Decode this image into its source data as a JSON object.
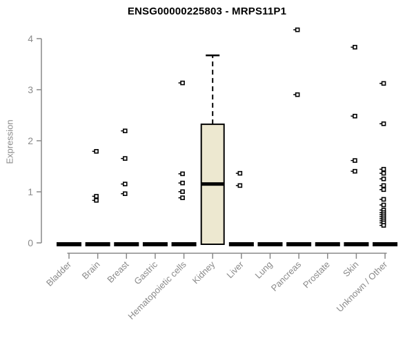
{
  "chart_data": {
    "type": "boxplot",
    "title": "ENSG00000225803 - MRPS11P1",
    "ylabel": "Expression",
    "xlabel": "",
    "ylim": [
      0,
      4
    ],
    "yticks": [
      0,
      1,
      2,
      3,
      4
    ],
    "grid": false,
    "legend": "none",
    "categories": [
      "Bladder",
      "Brain",
      "Breast",
      "Gastric",
      "Hematopoietic cells",
      "Kidney",
      "Liver",
      "Lung",
      "Pancreas",
      "Prostate",
      "Skin",
      "Unknown / Other"
    ],
    "boxes": [
      {
        "category": "Bladder",
        "collapsed": true,
        "q1": 0,
        "median": 0,
        "q3": 0,
        "whisker_low": 0,
        "whisker_high": 0,
        "outliers": []
      },
      {
        "category": "Brain",
        "collapsed": true,
        "q1": 0,
        "median": 0,
        "q3": 0,
        "whisker_low": 0,
        "whisker_high": 0,
        "outliers": [
          1.82,
          0.94,
          0.86
        ]
      },
      {
        "category": "Breast",
        "collapsed": true,
        "q1": 0,
        "median": 0,
        "q3": 0,
        "whisker_low": 0,
        "whisker_high": 0,
        "outliers": [
          2.22,
          1.68,
          1.18,
          0.99
        ]
      },
      {
        "category": "Gastric",
        "collapsed": true,
        "q1": 0,
        "median": 0,
        "q3": 0,
        "whisker_low": 0,
        "whisker_high": 0,
        "outliers": []
      },
      {
        "category": "Hematopoietic cells",
        "collapsed": true,
        "q1": 0,
        "median": 0,
        "q3": 0,
        "whisker_low": 0,
        "whisker_high": 0,
        "outliers": [
          3.16,
          1.38,
          1.2,
          1.03,
          0.91
        ]
      },
      {
        "category": "Kidney",
        "collapsed": false,
        "q1": 0,
        "median": 1.18,
        "q3": 2.35,
        "whisker_low": 0,
        "whisker_high": 3.7,
        "outliers": []
      },
      {
        "category": "Liver",
        "collapsed": true,
        "q1": 0,
        "median": 0,
        "q3": 0,
        "whisker_low": 0,
        "whisker_high": 0,
        "outliers": [
          1.39,
          1.15
        ]
      },
      {
        "category": "Lung",
        "collapsed": true,
        "q1": 0,
        "median": 0,
        "q3": 0,
        "whisker_low": 0,
        "whisker_high": 0,
        "outliers": []
      },
      {
        "category": "Pancreas",
        "collapsed": true,
        "q1": 0,
        "median": 0,
        "q3": 0,
        "whisker_low": 0,
        "whisker_high": 0,
        "outliers": [
          4.2,
          2.93
        ]
      },
      {
        "category": "Prostate",
        "collapsed": true,
        "q1": 0,
        "median": 0,
        "q3": 0,
        "whisker_low": 0,
        "whisker_high": 0,
        "outliers": []
      },
      {
        "category": "Skin",
        "collapsed": true,
        "q1": 0,
        "median": 0,
        "q3": 0,
        "whisker_low": 0,
        "whisker_high": 0,
        "outliers": [
          3.86,
          2.51,
          1.64,
          1.43
        ]
      },
      {
        "category": "Unknown / Other",
        "collapsed": true,
        "q1": 0,
        "median": 0,
        "q3": 0,
        "whisker_low": 0,
        "whisker_high": 0,
        "outliers": [
          3.15,
          2.36,
          1.47,
          1.39,
          1.28,
          1.15,
          1.07,
          0.88,
          0.77,
          0.67,
          0.62,
          0.58,
          0.54,
          0.5,
          0.46,
          0.42,
          0.37
        ]
      }
    ],
    "colors": {
      "box_fill": "#EDE8D0",
      "box_stroke": "#000000",
      "median": "#000000",
      "outlier": "#000000",
      "axis": "#888888",
      "tick_label": "#8a8a8a",
      "title": "#000000",
      "background": "#ffffff"
    }
  }
}
